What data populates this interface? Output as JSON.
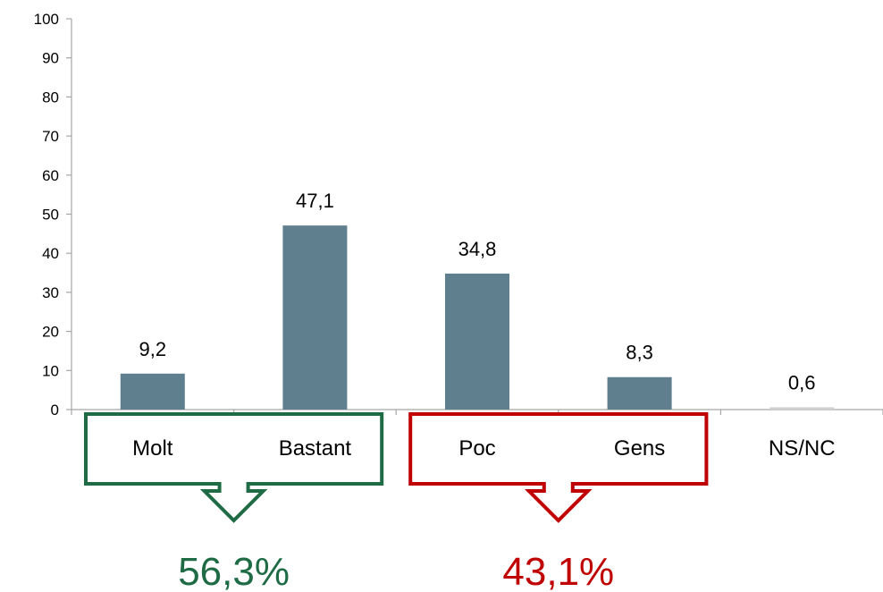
{
  "chart_data": {
    "type": "bar",
    "categories": [
      "Molt",
      "Bastant",
      "Poc",
      "Gens",
      "NS/NC"
    ],
    "values": [
      9.2,
      47.1,
      34.8,
      8.3,
      0.6
    ],
    "data_labels": [
      "9,2",
      "47,1",
      "34,8",
      "8,3",
      "0,6"
    ],
    "ylim": [
      0,
      100
    ],
    "yticks": [
      "0",
      "10",
      "20",
      "30",
      "40",
      "50",
      "60",
      "70",
      "80",
      "90",
      "100"
    ],
    "grid": false,
    "colors": {
      "bar": "#5f7f8f",
      "bar_muted": "#d0d0d0",
      "positive": "#1e6b46",
      "negative": "#c00000"
    },
    "groups": [
      {
        "categories": [
          "Molt",
          "Bastant"
        ],
        "total_label": "56,3%",
        "color": "#1e6b46"
      },
      {
        "categories": [
          "Poc",
          "Gens"
        ],
        "total_label": "43,1%",
        "color": "#c00000"
      }
    ]
  }
}
